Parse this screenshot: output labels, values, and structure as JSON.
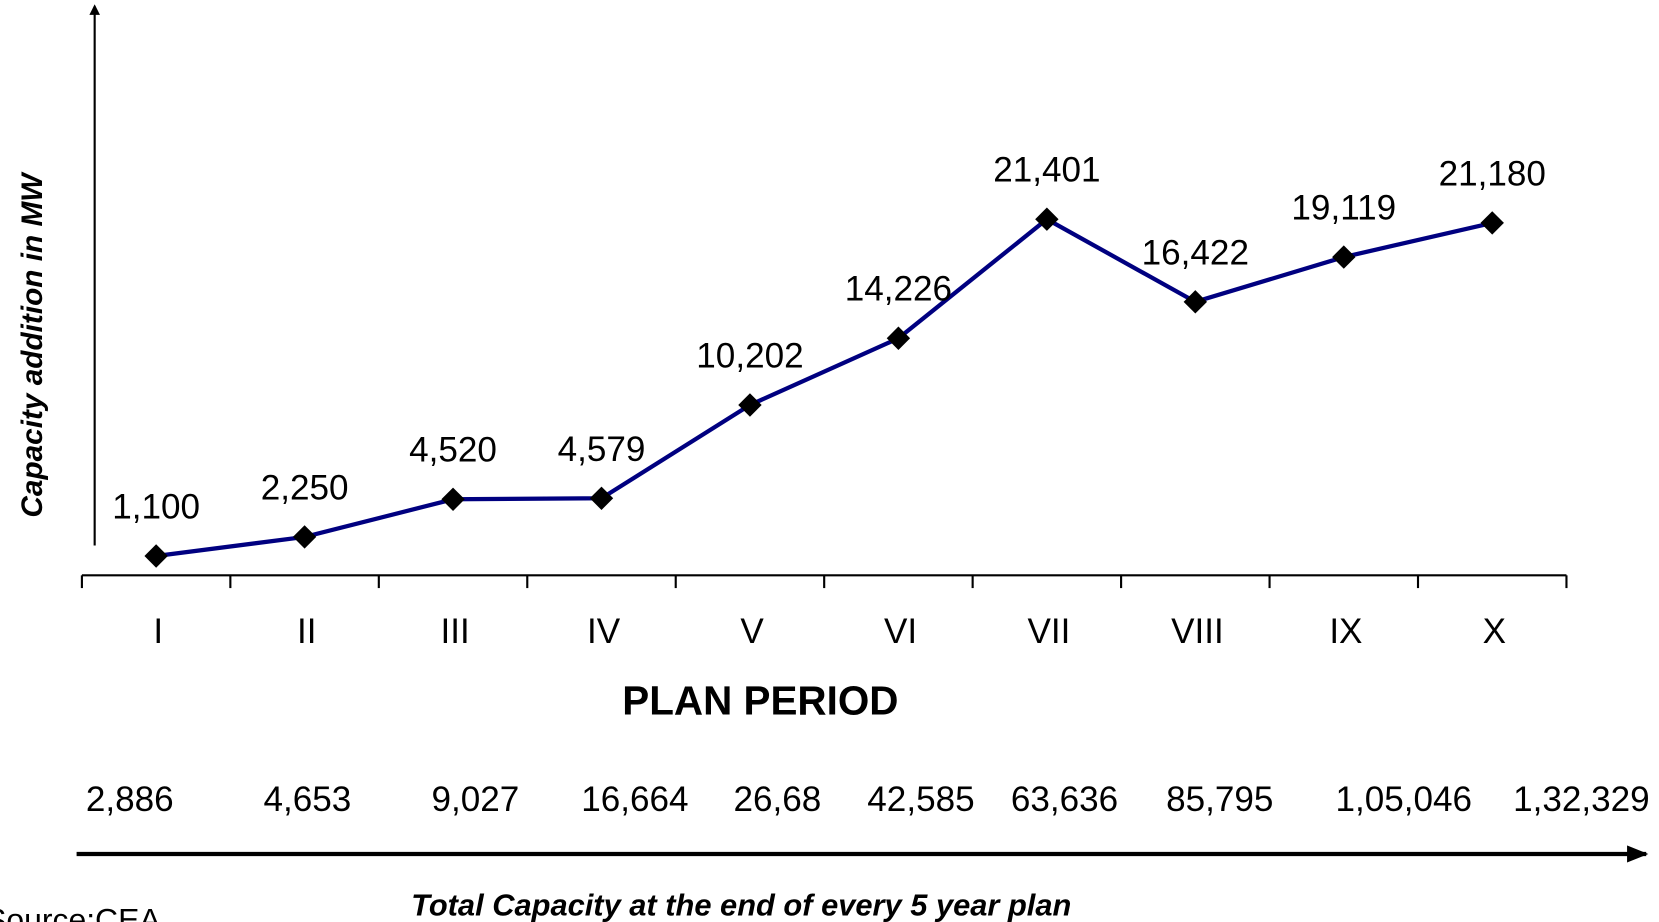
{
  "chart_data": {
    "type": "line",
    "y_label": "Capacity addition in MW",
    "x_label": "PLAN PERIOD",
    "categories": [
      "I",
      "II",
      "III",
      "IV",
      "V",
      "VI",
      "VII",
      "VIII",
      "IX",
      "X"
    ],
    "series": [
      {
        "name": "Capacity addition",
        "color": "#000080",
        "marker_color": "#000000",
        "values": [
          1100,
          2250,
          4520,
          4579,
          10202,
          14226,
          21401,
          16422,
          19119,
          21180
        ],
        "value_labels": [
          "1,100",
          "2,250",
          "4,520",
          "4,579",
          "10,202",
          "14,226",
          "21,401",
          "16,422",
          "19,119",
          "21,180"
        ]
      }
    ],
    "ylim": [
      0,
      25000
    ],
    "total_capacity_labels": [
      "2,886",
      "4,653",
      "9,027",
      "16,664",
      "26,68",
      "42,585",
      "63,636",
      "85,795",
      "1,05,046",
      "1,32,329"
    ],
    "footer": "Total Capacity at the end of every 5 year plan",
    "source": "Source:CEA"
  }
}
